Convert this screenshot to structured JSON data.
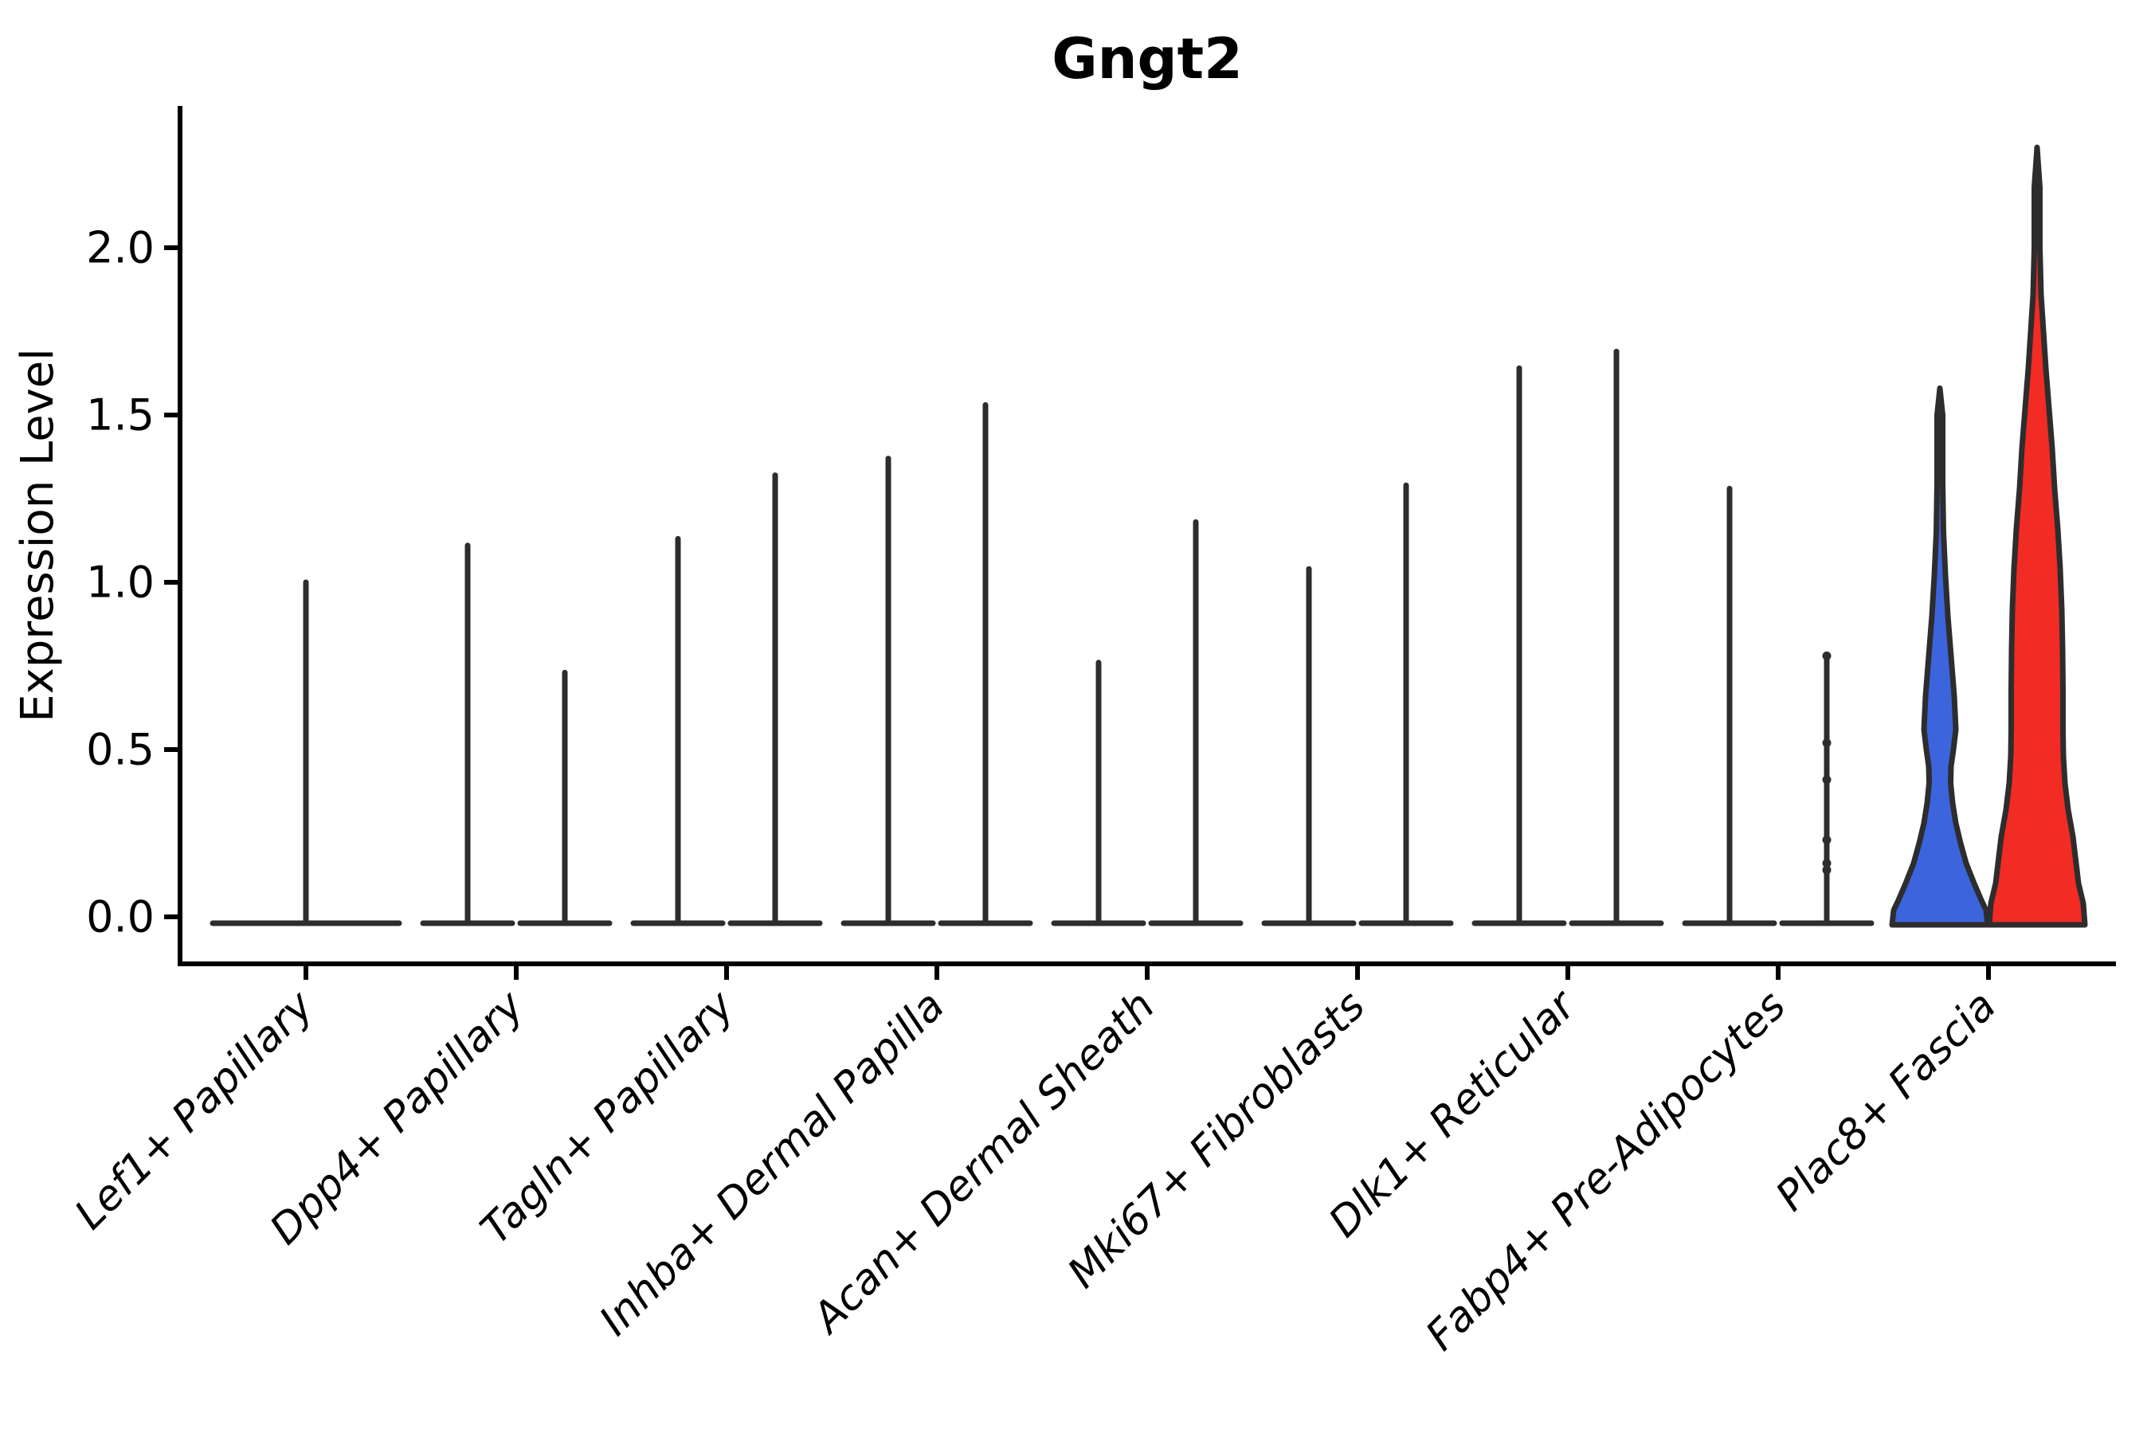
{
  "title": "Gngt2",
  "ylabel": "Expression Level",
  "colors": {
    "blue_fill": "#3c64dc",
    "red_fill": "#f22b24",
    "violin_outline": "#2d2d2d",
    "axis": "#000000",
    "background": "#ffffff"
  },
  "chart_data": {
    "type": "violin",
    "title": "Gngt2",
    "xlabel": "",
    "ylabel": "Expression Level",
    "ylim": [
      -0.14,
      2.42
    ],
    "grid": false,
    "legend": "none",
    "yticks": [
      {
        "value": 0.0,
        "label": "0.0"
      },
      {
        "value": 0.5,
        "label": "0.5"
      },
      {
        "value": 1.0,
        "label": "1.0"
      },
      {
        "value": 1.5,
        "label": "1.5"
      },
      {
        "value": 2.0,
        "label": "2.0"
      }
    ],
    "categories": [
      "Lef1+ Papillary",
      "Dpp4+ Papillary",
      "Tagln+ Papillary",
      "Inhba+ Dermal Papilla",
      "Acan+ Dermal Sheath",
      "Mki67+ Fibroblasts",
      "Dlk1+ Reticular",
      "Fabp4+ Pre-Adipocytes",
      "Plac8+ Fascia"
    ],
    "groups_per_category": 2,
    "violins": [
      {
        "category_index": 0,
        "category": "Lef1+ Papillary",
        "slot": "center",
        "max_expression": 1.0,
        "fill": "none"
      },
      {
        "category_index": 1,
        "category": "Dpp4+ Papillary",
        "slot": "left",
        "max_expression": 1.11,
        "fill": "none"
      },
      {
        "category_index": 1,
        "category": "Dpp4+ Papillary",
        "slot": "right",
        "max_expression": 0.73,
        "fill": "none"
      },
      {
        "category_index": 2,
        "category": "Tagln+ Papillary",
        "slot": "left",
        "max_expression": 1.13,
        "fill": "none"
      },
      {
        "category_index": 2,
        "category": "Tagln+ Papillary",
        "slot": "right",
        "max_expression": 1.32,
        "fill": "none"
      },
      {
        "category_index": 3,
        "category": "Inhba+ Dermal Papilla",
        "slot": "left",
        "max_expression": 1.37,
        "fill": "none"
      },
      {
        "category_index": 3,
        "category": "Inhba+ Dermal Papilla",
        "slot": "right",
        "max_expression": 1.53,
        "fill": "none"
      },
      {
        "category_index": 4,
        "category": "Acan+ Dermal Sheath",
        "slot": "left",
        "max_expression": 0.76,
        "fill": "none"
      },
      {
        "category_index": 4,
        "category": "Acan+ Dermal Sheath",
        "slot": "right",
        "max_expression": 1.18,
        "fill": "none"
      },
      {
        "category_index": 5,
        "category": "Mki67+ Fibroblasts",
        "slot": "left",
        "max_expression": 1.04,
        "fill": "none"
      },
      {
        "category_index": 5,
        "category": "Mki67+ Fibroblasts",
        "slot": "right",
        "max_expression": 1.29,
        "fill": "none"
      },
      {
        "category_index": 6,
        "category": "Dlk1+ Reticular",
        "slot": "left",
        "max_expression": 1.64,
        "fill": "none"
      },
      {
        "category_index": 6,
        "category": "Dlk1+ Reticular",
        "slot": "right",
        "max_expression": 1.69,
        "fill": "none"
      },
      {
        "category_index": 7,
        "category": "Fabp4+ Pre-Adipocytes",
        "slot": "left",
        "max_expression": 1.28,
        "fill": "none"
      },
      {
        "category_index": 7,
        "category": "Fabp4+ Pre-Adipocytes",
        "slot": "right",
        "max_expression": 0.78,
        "fill": "none",
        "jitter_points": [
          0.78,
          0.52,
          0.41,
          0.23,
          0.16,
          0.14
        ]
      },
      {
        "category_index": 8,
        "category": "Plac8+ Fascia",
        "slot": "left",
        "max_expression": 1.58,
        "fill": "#3c64dc",
        "profile": [
          [
            1.58,
            0
          ],
          [
            1.5,
            3.5
          ],
          [
            1.3,
            3.5
          ],
          [
            1.15,
            4.5
          ],
          [
            1.02,
            7
          ],
          [
            0.9,
            10
          ],
          [
            0.78,
            14
          ],
          [
            0.66,
            18
          ],
          [
            0.56,
            20
          ],
          [
            0.5,
            17
          ],
          [
            0.45,
            14
          ],
          [
            0.4,
            13.5
          ],
          [
            0.34,
            16
          ],
          [
            0.28,
            20
          ],
          [
            0.22,
            26
          ],
          [
            0.16,
            33
          ],
          [
            0.1,
            43
          ],
          [
            0.05,
            52
          ],
          [
            0.02,
            58
          ],
          [
            0.0,
            60
          ]
        ]
      },
      {
        "category_index": 8,
        "category": "Plac8+ Fascia",
        "slot": "right",
        "max_expression": 2.3,
        "fill": "#f22b24",
        "profile": [
          [
            2.3,
            0
          ],
          [
            2.18,
            3.5
          ],
          [
            2.0,
            3.5
          ],
          [
            1.86,
            5
          ],
          [
            1.75,
            8
          ],
          [
            1.64,
            11
          ],
          [
            1.52,
            15
          ],
          [
            1.4,
            19
          ],
          [
            1.28,
            22
          ],
          [
            1.16,
            26
          ],
          [
            1.04,
            29
          ],
          [
            0.92,
            31
          ],
          [
            0.8,
            32
          ],
          [
            0.68,
            32.5
          ],
          [
            0.56,
            32.5
          ],
          [
            0.48,
            33
          ],
          [
            0.4,
            35
          ],
          [
            0.32,
            39
          ],
          [
            0.24,
            45
          ],
          [
            0.16,
            49
          ],
          [
            0.1,
            52
          ],
          [
            0.04,
            58
          ],
          [
            0.0,
            60
          ]
        ]
      }
    ]
  }
}
